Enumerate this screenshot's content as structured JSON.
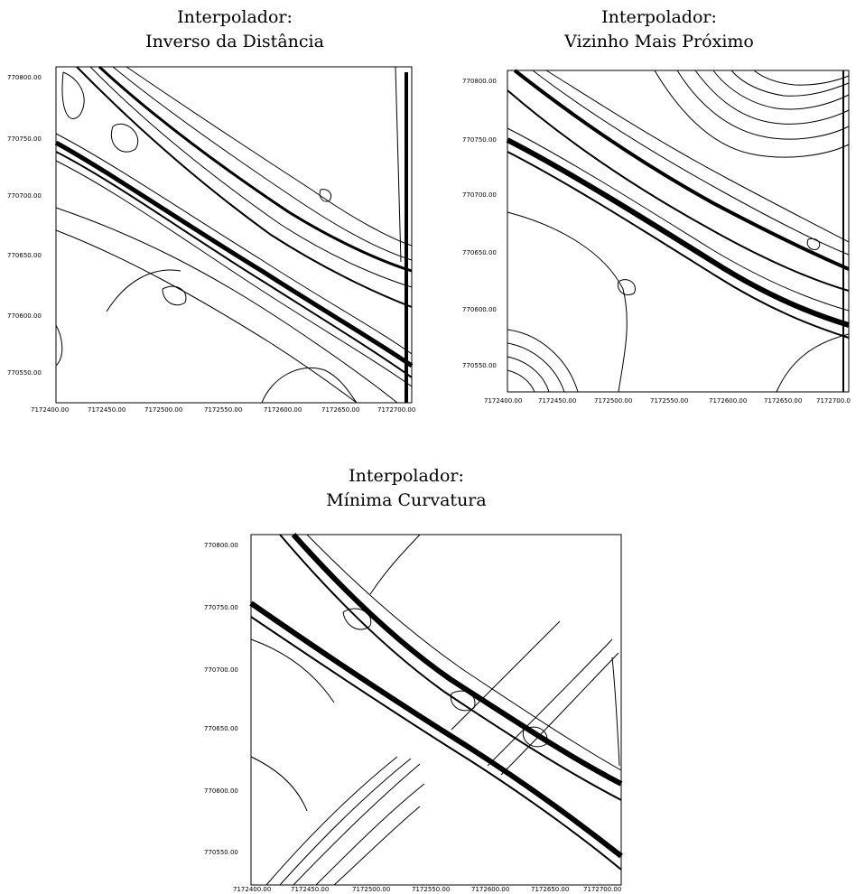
{
  "panels": [
    {
      "title_line1": "Interpolador:",
      "title_line2": "Inverso da Distância",
      "y_ticks": [
        "770800.00",
        "770750.00",
        "770700.00",
        "770650.00",
        "770600.00",
        "770550.00"
      ],
      "x_ticks": [
        "7172400.00",
        "7172450.00",
        "7172500.00",
        "7172550.00",
        "7172600.00",
        "7172650.00",
        "7172700.00"
      ]
    },
    {
      "title_line1": "Interpolador:",
      "title_line2": "Vizinho Mais Próximo",
      "y_ticks": [
        "770800.00",
        "770750.00",
        "770700.00",
        "770650.00",
        "770600.00",
        "770550.00"
      ],
      "x_ticks": [
        "7172400.00",
        "7172450.00",
        "7172500.00",
        "7172550.00",
        "7172600.00",
        "7172650.00",
        "7172700.0"
      ]
    },
    {
      "title_line1": "Interpolador:",
      "title_line2": "Mínima Curvatura",
      "y_ticks": [
        "770800.00",
        "770750.00",
        "770700.00",
        "770650.00",
        "770600.00",
        "770550.00"
      ],
      "x_ticks": [
        "7172400.00",
        "7172450.00",
        "7172500.00",
        "7172550.00",
        "7172600.00",
        "7172650.00",
        "7172700.00"
      ]
    }
  ],
  "colors": {
    "line": "#000000",
    "background": "#ffffff"
  }
}
